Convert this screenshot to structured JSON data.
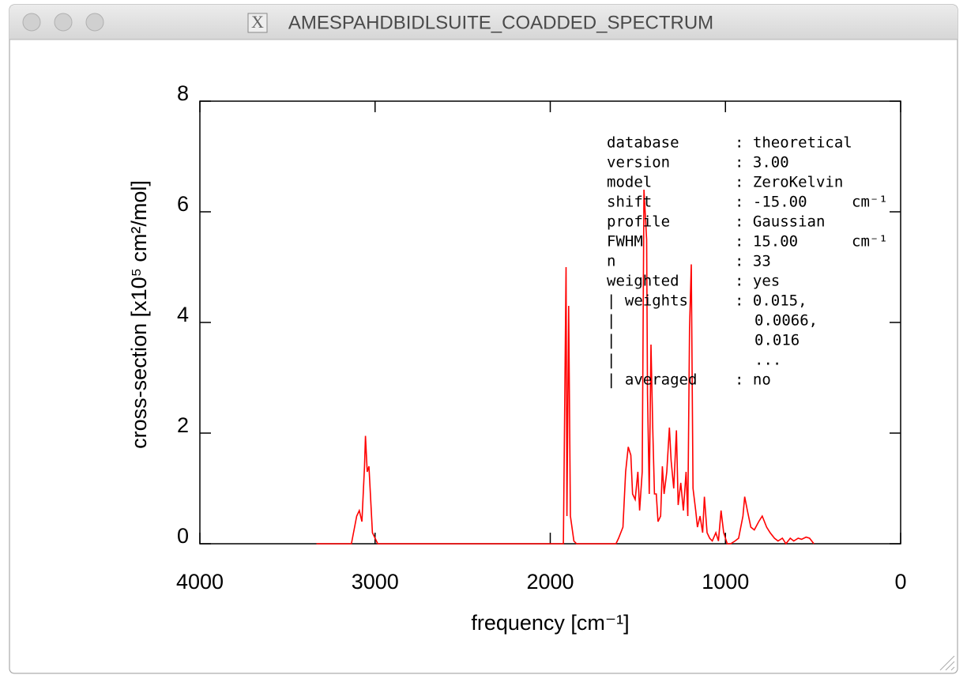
{
  "window": {
    "title": "AMESPAHDBIDLSUITE_COADDED_SPECTRUM"
  },
  "chart_data": {
    "type": "line",
    "xlabel": "frequency [cm⁻¹]",
    "ylabel": "cross-section [x10⁵ cm²/mol]",
    "xlim": [
      4000,
      0
    ],
    "xticks": [
      4000,
      3000,
      2000,
      1000,
      0
    ],
    "ylim": [
      0,
      8
    ],
    "yticks": [
      0,
      2,
      4,
      6,
      8
    ],
    "color": "#ff0000",
    "x": [
      3335,
      3135,
      3105,
      3090,
      3075,
      3060,
      3055,
      3045,
      3035,
      3025,
      3015,
      3000,
      2985,
      1925,
      1910,
      1905,
      1895,
      1885,
      1865,
      1850,
      1625,
      1610,
      1585,
      1570,
      1555,
      1540,
      1530,
      1515,
      1500,
      1490,
      1475,
      1465,
      1450,
      1445,
      1435,
      1425,
      1415,
      1405,
      1395,
      1385,
      1370,
      1360,
      1350,
      1335,
      1320,
      1310,
      1295,
      1280,
      1270,
      1255,
      1240,
      1225,
      1215,
      1205,
      1195,
      1185,
      1170,
      1160,
      1145,
      1130,
      1120,
      1105,
      1090,
      1075,
      1055,
      1040,
      1025,
      1010,
      990,
      970,
      945,
      925,
      900,
      890,
      875,
      855,
      835,
      810,
      790,
      765,
      745,
      720,
      700,
      675,
      655,
      630,
      610,
      585,
      565,
      540,
      520,
      495
    ],
    "values": [
      0,
      0,
      0.5,
      0.6,
      0.4,
      1.4,
      1.95,
      1.3,
      1.4,
      0.8,
      0.2,
      0.1,
      0,
      0,
      5,
      0.5,
      4.3,
      0.5,
      0.05,
      0,
      0,
      0.1,
      0.3,
      1.3,
      1.75,
      1.6,
      0.9,
      0.8,
      1.3,
      0.6,
      1.3,
      6.4,
      5.5,
      2.7,
      0.9,
      3.6,
      2.1,
      0.9,
      0.9,
      0.4,
      0.5,
      1.4,
      0.9,
      1.3,
      2.1,
      1.5,
      1,
      2.05,
      0.7,
      1.1,
      0.6,
      1.3,
      0.5,
      3.9,
      5.05,
      1,
      0.6,
      0.3,
      0.5,
      0.2,
      0.85,
      0.2,
      0.1,
      0.05,
      0.2,
      0.05,
      0.6,
      0.2,
      0,
      0,
      0.05,
      0.1,
      0.5,
      0.85,
      0.6,
      0.3,
      0.25,
      0.4,
      0.5,
      0.3,
      0.2,
      0.1,
      0.05,
      0.1,
      0,
      0.1,
      0.05,
      0.1,
      0.08,
      0.12,
      0.1,
      0
    ],
    "annotation": [
      {
        "key": "database",
        "value": ": theoretical"
      },
      {
        "key": "version",
        "value": ": 3.00"
      },
      {
        "key": "model",
        "value": ": ZeroKelvin"
      },
      {
        "key": "shift",
        "value": ": -15.00",
        "unit": "cm⁻¹"
      },
      {
        "key": "profile",
        "value": ": Gaussian"
      },
      {
        "key": "FWHM",
        "value": ": 15.00",
        "unit": "cm⁻¹"
      },
      {
        "key": "n",
        "value": ": 33"
      },
      {
        "key": "weighted",
        "value": ": yes"
      },
      {
        "key": "| weights",
        "value": ": 0.015,"
      },
      {
        "key": "|",
        "value": "0.0066,"
      },
      {
        "key": "|",
        "value": "0.016"
      },
      {
        "key": "|",
        "value": "..."
      },
      {
        "key": "| averaged",
        "value": ": no"
      }
    ]
  }
}
